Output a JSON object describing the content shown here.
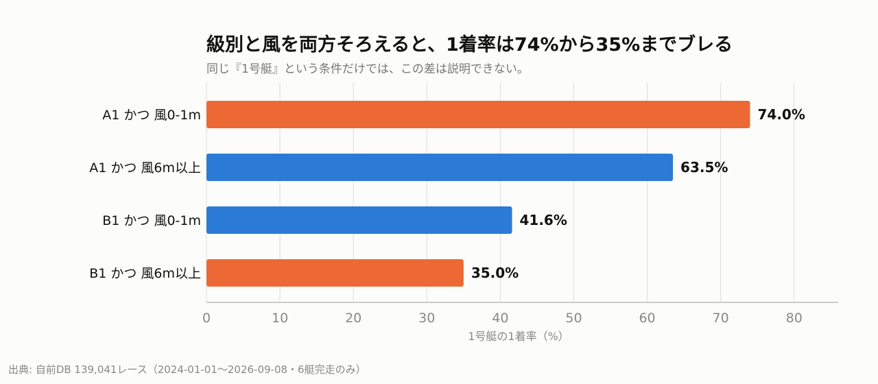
{
  "chart_data": {
    "type": "bar",
    "orientation": "horizontal",
    "title": "級別と風を両方そろえると、1着率は74%から35%までブレる",
    "subtitle": "同じ『1号艇』という条件だけでは、この差は説明できない。",
    "categories": [
      "A1 かつ 風0-1m",
      "A1 かつ 風6m以上",
      "B1 かつ 風0-1m",
      "B1 かつ 風6m以上"
    ],
    "values": [
      74.0,
      63.5,
      41.6,
      35.0
    ],
    "value_labels": [
      "74.0%",
      "63.5%",
      "41.6%",
      "35.0%"
    ],
    "bar_colors": [
      "#ec6935",
      "#2b7bd6",
      "#2b7bd6",
      "#ec6935"
    ],
    "xlabel": "1号艇の1着率（%）",
    "ylabel": "",
    "xlim": [
      0,
      86
    ],
    "xticks": [
      0,
      10,
      20,
      30,
      40,
      50,
      60,
      70,
      80
    ],
    "grid": true,
    "legend": "none"
  },
  "source": "出典: 自前DB 139,041レース（2024-01-01〜2026-09-08・6艇完走のみ）"
}
